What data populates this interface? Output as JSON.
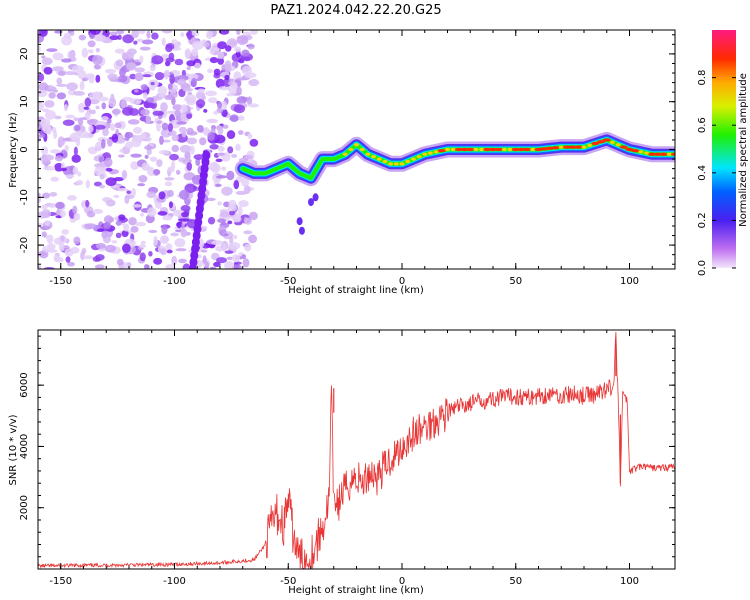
{
  "title": "PAZ1.2024.042.22.20.G25",
  "colors": {
    "snr_line": "#e83535",
    "frame": "#000000",
    "background": "#ffffff"
  },
  "chart_data": [
    {
      "type": "heatmap",
      "xlabel": "Height of straight line (km)",
      "ylabel": "Frequency (Hz)",
      "xlim": [
        -160,
        120
      ],
      "ylim": [
        -25,
        25
      ],
      "xticks": [
        -150,
        -100,
        -50,
        0,
        50,
        100
      ],
      "yticks": [
        -20,
        -10,
        0,
        10,
        20
      ],
      "colorbar": {
        "label": "Normalized spectral amplitude",
        "range": [
          0,
          1
        ],
        "ticks": [
          "0.0",
          "0.2",
          "0.4",
          "0.6",
          "0.8"
        ],
        "colormap": "rainbow (lavender → purple → blue → cyan → green → yellow → orange → red → pink)"
      },
      "ridge_frequency": {
        "x": [
          -70,
          -65,
          -60,
          -55,
          -50,
          -45,
          -40,
          -35,
          -30,
          -25,
          -20,
          -15,
          -10,
          -5,
          0,
          5,
          10,
          20,
          30,
          40,
          50,
          60,
          70,
          80,
          90,
          95,
          100,
          110,
          120
        ],
        "y": [
          -4,
          -5,
          -5,
          -4,
          -3,
          -5,
          -6,
          -2,
          -2,
          -1,
          1,
          -1,
          -2,
          -3,
          -3,
          -2,
          -1,
          0,
          0,
          0,
          0,
          0,
          0.5,
          0.5,
          2,
          1,
          0,
          -1,
          -1
        ]
      }
    },
    {
      "type": "line",
      "xlabel": "Height of straight line (km)",
      "ylabel": "SNR (10 * v/v)",
      "xlim": [
        -160,
        120
      ],
      "ylim": [
        0,
        7800
      ],
      "xticks": [
        -150,
        -100,
        -50,
        0,
        50,
        100
      ],
      "yticks": [
        2000,
        4000,
        6000
      ],
      "series": [
        {
          "x": [
            -160,
            -140,
            -120,
            -100,
            -80,
            -65,
            -60,
            -57,
            -55,
            -52,
            -50,
            -48,
            -46,
            -44,
            -42,
            -40,
            -38,
            -36,
            -34,
            -32,
            -31,
            -30,
            -29,
            -28,
            -26,
            -24,
            -22,
            -20,
            -17,
            -14,
            -11,
            -8,
            -5,
            -2,
            0,
            5,
            10,
            15,
            20,
            25,
            30,
            35,
            40,
            45,
            50,
            55,
            60,
            65,
            70,
            75,
            80,
            85,
            90,
            93,
            94,
            95,
            96,
            97,
            98,
            99,
            100,
            105,
            110,
            115,
            120
          ],
          "y": [
            100,
            120,
            130,
            150,
            200,
            300,
            800,
            1500,
            1800,
            1400,
            2300,
            1200,
            500,
            300,
            200,
            500,
            800,
            1100,
            1600,
            2300,
            5900,
            1900,
            2400,
            2100,
            2500,
            2700,
            2900,
            3000,
            2800,
            3200,
            3000,
            3300,
            3600,
            3800,
            4000,
            4400,
            4600,
            4900,
            5100,
            5300,
            5400,
            5500,
            5550,
            5600,
            5650,
            5600,
            5650,
            5700,
            5650,
            5700,
            5650,
            5700,
            5900,
            6000,
            7500,
            5600,
            2800,
            5700,
            5600,
            5500,
            3200,
            3350,
            3300,
            3300,
            3350
          ]
        }
      ]
    }
  ]
}
